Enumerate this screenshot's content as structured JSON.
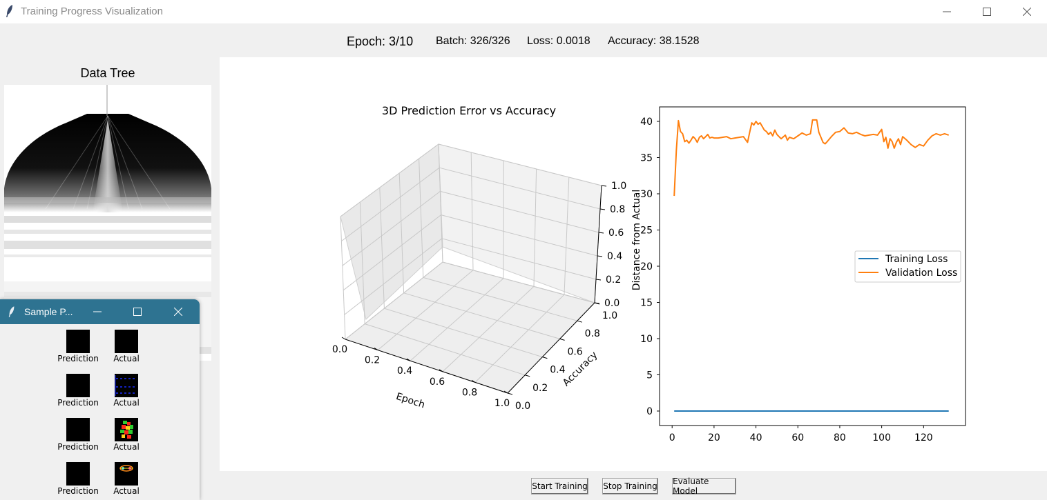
{
  "window": {
    "title": "Training Progress Visualization"
  },
  "status": {
    "epoch": "Epoch: 3/10",
    "batch": "Batch: 326/326",
    "loss": "Loss: 0.0018",
    "accuracy": "Accuracy: 38.1528"
  },
  "left_panel": {
    "title": "Data Tree"
  },
  "buttons": {
    "start": "Start Training",
    "stop": "Stop Training",
    "evaluate": "Evaluate Model"
  },
  "sample_window": {
    "title": "Sample P...",
    "prediction_label": "Prediction",
    "actual_label": "Actual"
  },
  "chart_data": [
    {
      "type": "scatter3d",
      "title": "3D Prediction Error vs Accuracy",
      "xlabel": "Epoch",
      "ylabel": "Accuracy",
      "zlabel": "Distance from Actual",
      "xlim": [
        0,
        1
      ],
      "ylim": [
        0,
        1
      ],
      "zlim": [
        0,
        1
      ],
      "xticks": [
        "0.0",
        "0.2",
        "0.4",
        "0.6",
        "0.8",
        "1.0"
      ],
      "yticks": [
        "0.0",
        "0.2",
        "0.4",
        "0.6",
        "0.8",
        "1.0"
      ],
      "zticks": [
        "0.0",
        "0.2",
        "0.4",
        "0.6",
        "0.8",
        "1.0"
      ],
      "points": []
    },
    {
      "type": "line",
      "title": "",
      "xlim": [
        -6,
        140
      ],
      "ylim": [
        -2,
        42
      ],
      "xticks": [
        0,
        20,
        40,
        60,
        80,
        100,
        120
      ],
      "yticks": [
        0,
        5,
        10,
        15,
        20,
        25,
        30,
        35,
        40
      ],
      "legend_position": "center-right",
      "series": [
        {
          "name": "Training Loss",
          "color": "#1f77b4",
          "x": [
            1,
            132
          ],
          "y": [
            0.0,
            0.0
          ]
        },
        {
          "name": "Validation Loss",
          "color": "#ff7f0e",
          "x": [
            1,
            2,
            3,
            4,
            5,
            6,
            7,
            8,
            9,
            10,
            11,
            12,
            13,
            14,
            15,
            16,
            17,
            18,
            19,
            20,
            22,
            24,
            26,
            28,
            30,
            32,
            34,
            36,
            37,
            38,
            39,
            40,
            41,
            42,
            43,
            44,
            45,
            46,
            47,
            48,
            49,
            50,
            52,
            54,
            55,
            56,
            58,
            60,
            62,
            64,
            66,
            67,
            68,
            69,
            70,
            72,
            73,
            74,
            76,
            78,
            80,
            82,
            84,
            86,
            88,
            90,
            92,
            94,
            96,
            98,
            100,
            101,
            102,
            103,
            104,
            105,
            106,
            107,
            108,
            109,
            110,
            112,
            114,
            116,
            118,
            120,
            122,
            124,
            126,
            128,
            130,
            132
          ],
          "y": [
            29.7,
            36.0,
            40.1,
            38.6,
            38.3,
            37.2,
            37.4,
            37.0,
            37.4,
            37.9,
            37.6,
            37.1,
            37.8,
            38.0,
            37.6,
            37.9,
            38.2,
            37.7,
            37.8,
            37.7,
            37.7,
            37.8,
            37.9,
            37.6,
            37.7,
            37.8,
            37.9,
            37.1,
            38.5,
            39.8,
            39.5,
            40.0,
            39.6,
            39.8,
            39.3,
            38.8,
            38.6,
            38.2,
            38.5,
            38.0,
            38.8,
            38.2,
            37.6,
            38.1,
            37.4,
            37.8,
            37.6,
            38.0,
            38.4,
            38.1,
            38.3,
            40.2,
            40.2,
            40.2,
            38.5,
            37.1,
            36.9,
            37.2,
            37.9,
            38.5,
            38.6,
            39.1,
            38.4,
            38.3,
            38.5,
            38.2,
            38.0,
            38.1,
            38.2,
            38.1,
            38.9,
            37.2,
            37.8,
            36.3,
            37.6,
            37.2,
            36.3,
            37.1,
            37.6,
            36.8,
            37.9,
            37.4,
            36.8,
            36.4,
            36.8,
            36.6,
            37.4,
            38.0,
            38.3,
            38.1,
            38.3,
            38.1
          ]
        }
      ]
    }
  ]
}
